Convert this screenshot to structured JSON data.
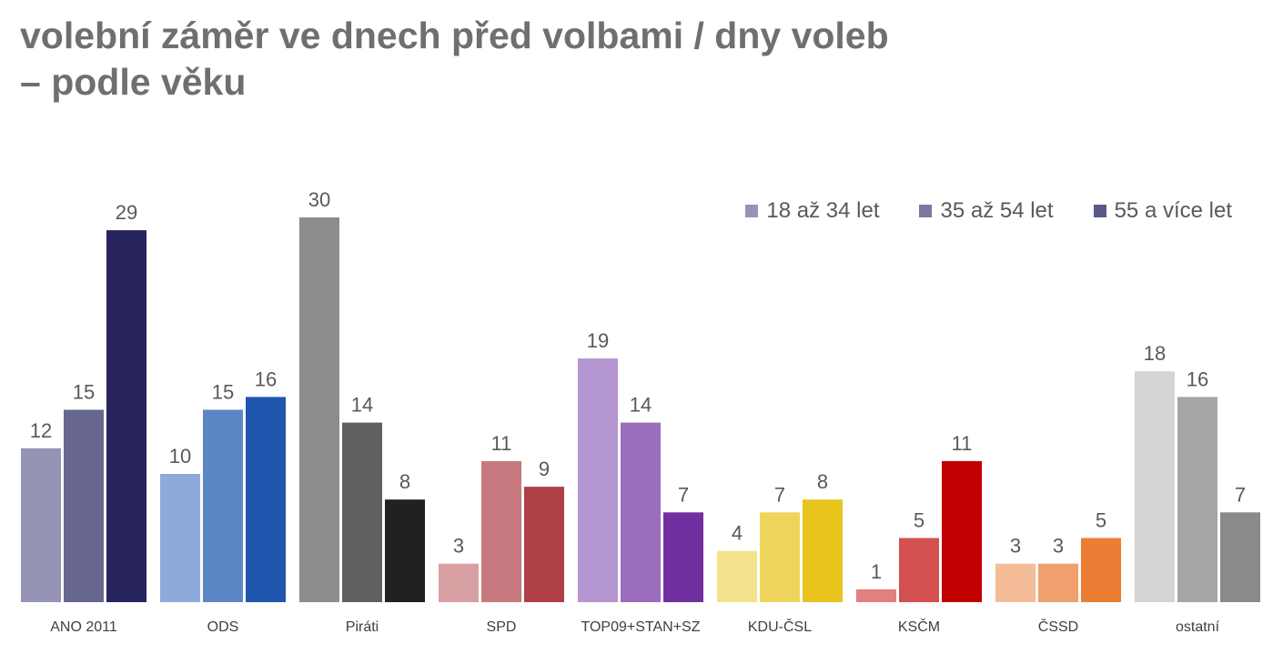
{
  "chart_data": {
    "type": "bar",
    "title_line1": "volební záměr ve dnech před volbami / dny voleb",
    "title_line2": "– podle věku",
    "legend_position": "top-right",
    "grid": false,
    "ylim": [
      0,
      32
    ],
    "categories": [
      "ANO 2011",
      "ODS",
      "Piráti",
      "SPD",
      "TOP09+STAN+SZ",
      "KDU-ČSL",
      "KSČM",
      "ČSSD",
      "ostatní"
    ],
    "series": [
      {
        "name": "18 až 34 let",
        "legend_color": "#9893b4",
        "values": [
          12,
          10,
          30,
          3,
          19,
          4,
          1,
          3,
          18
        ]
      },
      {
        "name": "35 až 54 let",
        "legend_color": "#7a7aa0",
        "values": [
          15,
          15,
          14,
          11,
          14,
          7,
          5,
          3,
          16
        ]
      },
      {
        "name": "55 a více let",
        "legend_color": "#5a5a88",
        "values": [
          29,
          16,
          8,
          9,
          7,
          8,
          11,
          5,
          7
        ]
      }
    ],
    "bar_colors": [
      [
        "#9694b4",
        "#67668e",
        "#27245d"
      ],
      [
        "#8eaadb",
        "#5d86c5",
        "#2156af"
      ],
      [
        "#8d8d8d",
        "#606060",
        "#212121"
      ],
      [
        "#d9a0a4",
        "#c8787f",
        "#b04048"
      ],
      [
        "#b496d1",
        "#9a6dbd",
        "#7130a0"
      ],
      [
        "#f2e38c",
        "#eed45b",
        "#e8c41c"
      ],
      [
        "#e08080",
        "#d34f50",
        "#c00000"
      ],
      [
        "#f5bd97",
        "#f0a06c",
        "#ec7d35"
      ],
      [
        "#d4d4d4",
        "#a6a6a6",
        "#8a8a8a"
      ]
    ]
  }
}
